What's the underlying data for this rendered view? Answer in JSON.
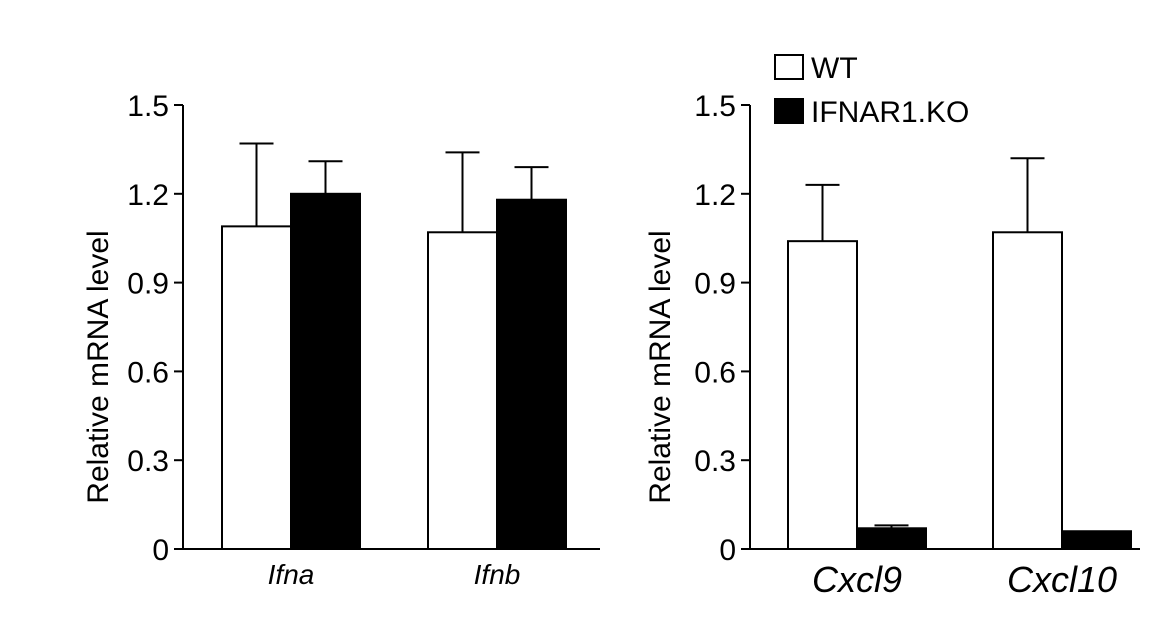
{
  "chart_data": [
    {
      "type": "bar",
      "ylabel": "Relative mRNA level",
      "ylim": [
        0,
        1.5
      ],
      "yticks": [
        "0",
        "0.3",
        "0.6",
        "0.9",
        "1.2",
        "1.5"
      ],
      "categories": [
        "Ifna",
        "Ifnb"
      ],
      "series": [
        {
          "name": "WT",
          "values": [
            1.09,
            1.07
          ],
          "errors": [
            0.28,
            0.27
          ]
        },
        {
          "name": "IFNAR1.KO",
          "values": [
            1.2,
            1.18
          ],
          "errors": [
            0.11,
            0.11
          ]
        }
      ]
    },
    {
      "type": "bar",
      "ylabel": "Relative mRNA level",
      "ylim": [
        0,
        1.5
      ],
      "yticks": [
        "0",
        "0.3",
        "0.6",
        "0.9",
        "1.2",
        "1.5"
      ],
      "categories": [
        "Cxcl9",
        "Cxcl10"
      ],
      "series": [
        {
          "name": "WT",
          "values": [
            1.04,
            1.07
          ],
          "errors": [
            0.19,
            0.25
          ]
        },
        {
          "name": "IFNAR1.KO",
          "values": [
            0.07,
            0.06
          ],
          "errors": [
            0.01,
            0.0
          ]
        }
      ],
      "legend": [
        "WT",
        "IFNAR1.KO"
      ]
    }
  ],
  "colors": {
    "WT": "#ffffff",
    "IFNAR1.KO": "#000000",
    "stroke": "#000000"
  }
}
